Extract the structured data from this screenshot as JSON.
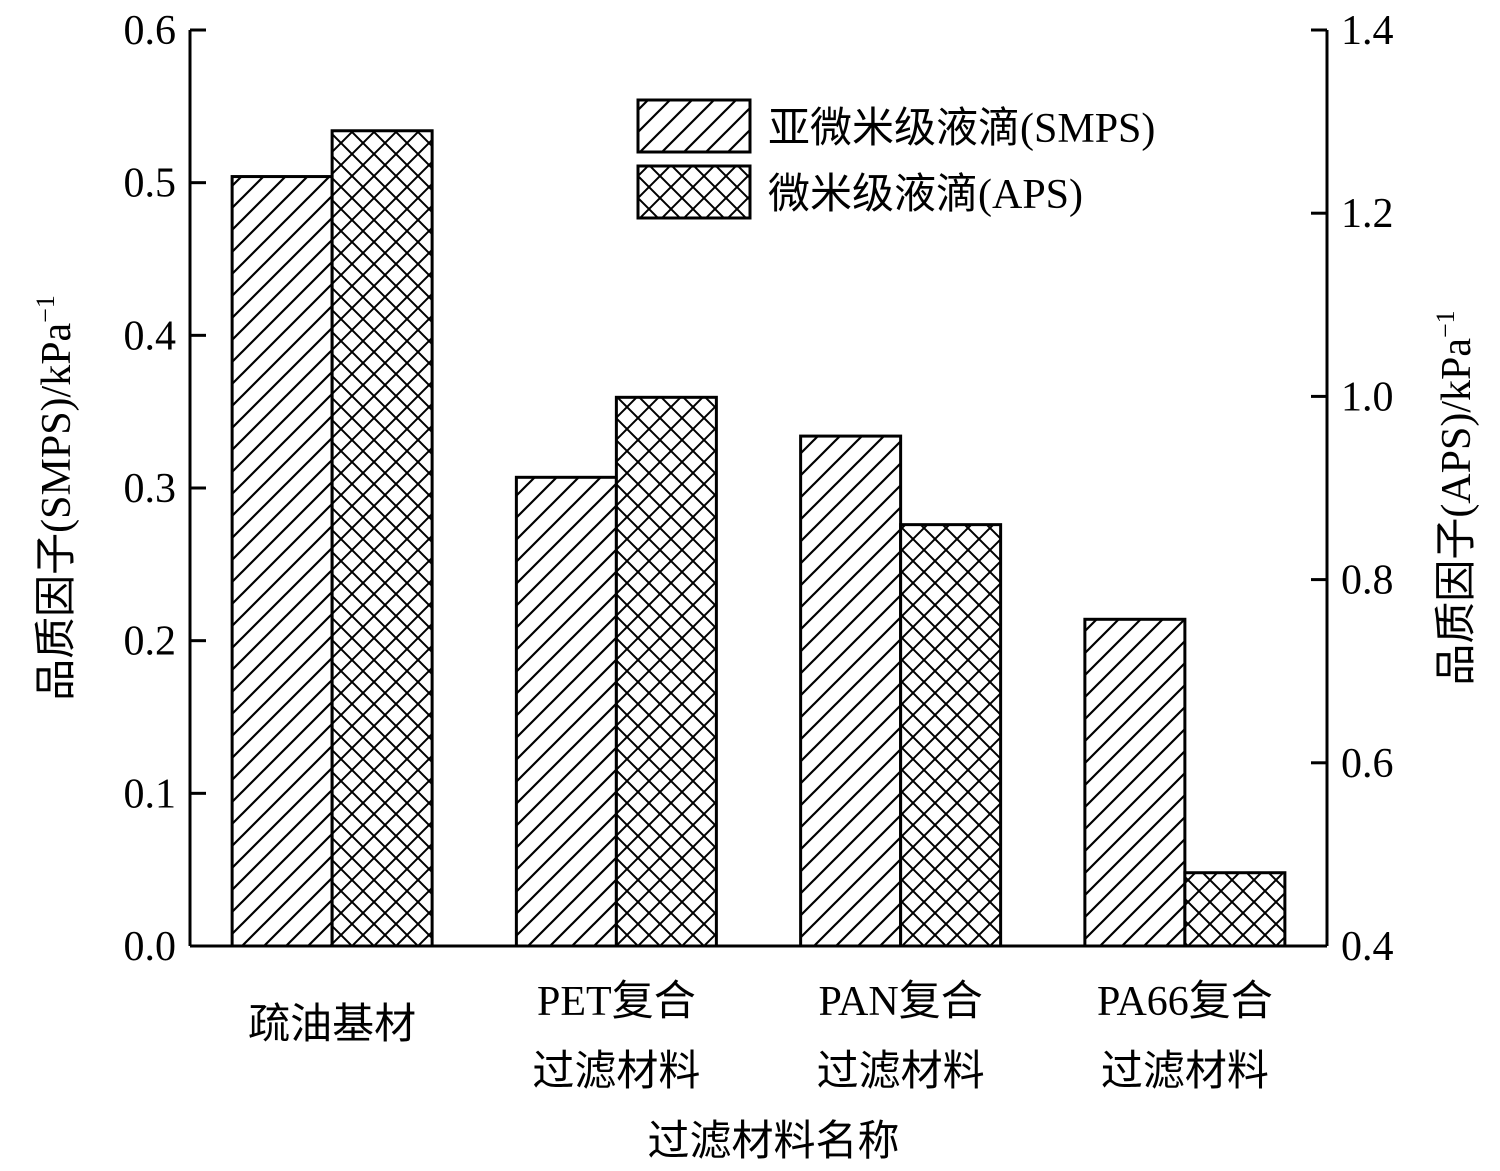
{
  "chart_data": {
    "type": "bar",
    "categories": [
      [
        "疏油基材"
      ],
      [
        "PET复合",
        "过滤材料"
      ],
      [
        "PAN复合",
        "过滤材料"
      ],
      [
        "PA66复合",
        "过滤材料"
      ]
    ],
    "xlabel": "过滤材料名称",
    "ylabel_left": {
      "main": "品质因子(SMPS)/kPa",
      "sup": "−1"
    },
    "ylabel_right": {
      "main": "品质因子(APS)/kPa",
      "sup": "−1"
    },
    "ylim_left": [
      0,
      0.6
    ],
    "ylim_right": [
      0.4,
      1.4
    ],
    "yticks_left": [
      "0.0",
      "0.1",
      "0.2",
      "0.3",
      "0.4",
      "0.5",
      "0.6"
    ],
    "yticks_right": [
      "0.4",
      "0.6",
      "0.8",
      "1.0",
      "1.2",
      "1.4"
    ],
    "series": [
      {
        "name": "亚微米级液滴(SMPS)",
        "axis": "left",
        "pattern": "diagonal-hatch",
        "values": [
          0.504,
          0.307,
          0.334,
          0.214
        ]
      },
      {
        "name": "微米级液滴(APS)",
        "axis": "right",
        "pattern": "cross-hatch",
        "values": [
          1.29,
          0.999,
          0.86,
          0.48
        ]
      }
    ],
    "legend_position": "top-right",
    "grid": false,
    "colors": {
      "stroke": "#000000",
      "fill": "#ffffff"
    }
  }
}
